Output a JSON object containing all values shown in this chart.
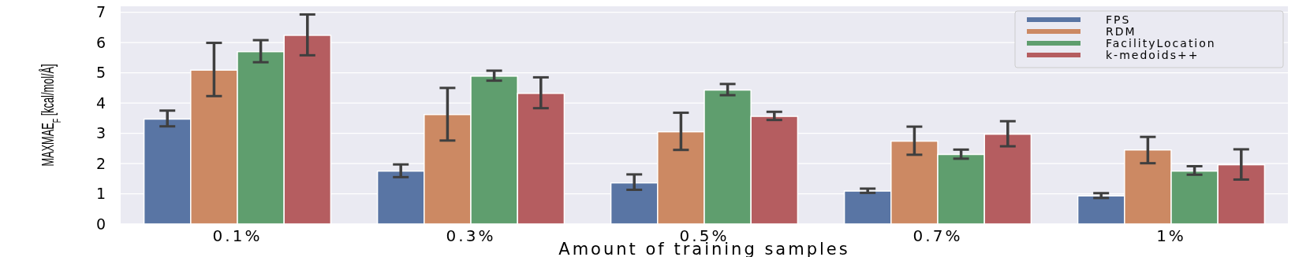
{
  "chart_data": {
    "type": "bar",
    "xlabel": "Amount of training samples",
    "ylabel": "MAXMAE$_{F}$ [kcal/mol/Å]",
    "categories": [
      "0.1%",
      "0.3%",
      "0.5%",
      "0.7%",
      "1%"
    ],
    "series": [
      {
        "name": "FPS",
        "color": "#5975a4",
        "values": [
          3.47,
          1.75,
          1.36,
          1.09,
          0.93
        ],
        "errors": [
          [
            3.23,
            3.75
          ],
          [
            1.55,
            1.97
          ],
          [
            1.13,
            1.64
          ],
          [
            1.03,
            1.17
          ],
          [
            0.86,
            1.02
          ]
        ]
      },
      {
        "name": "RDM",
        "color": "#cc8963",
        "values": [
          5.09,
          3.62,
          3.05,
          2.74,
          2.45
        ],
        "errors": [
          [
            4.23,
            5.99
          ],
          [
            2.76,
            4.5
          ],
          [
            2.45,
            3.68
          ],
          [
            2.29,
            3.22
          ],
          [
            2.01,
            2.88
          ]
        ]
      },
      {
        "name": "FacilityLocation",
        "color": "#5f9e6e",
        "values": [
          5.7,
          4.89,
          4.43,
          2.3,
          1.75
        ],
        "errors": [
          [
            5.35,
            6.08
          ],
          [
            4.74,
            5.07
          ],
          [
            4.26,
            4.63
          ],
          [
            2.16,
            2.46
          ],
          [
            1.63,
            1.91
          ]
        ]
      },
      {
        "name": "k-medoids++",
        "color": "#b55d60",
        "values": [
          6.24,
          4.32,
          3.56,
          2.97,
          1.96
        ],
        "errors": [
          [
            5.58,
            6.93
          ],
          [
            3.83,
            4.85
          ],
          [
            3.44,
            3.71
          ],
          [
            2.57,
            3.4
          ],
          [
            1.47,
            2.47
          ]
        ]
      }
    ],
    "ylim": [
      0,
      7.2
    ],
    "yticks": [
      0,
      1,
      2,
      3,
      4,
      5,
      6,
      7
    ],
    "grid": "y",
    "legend": "top right"
  }
}
